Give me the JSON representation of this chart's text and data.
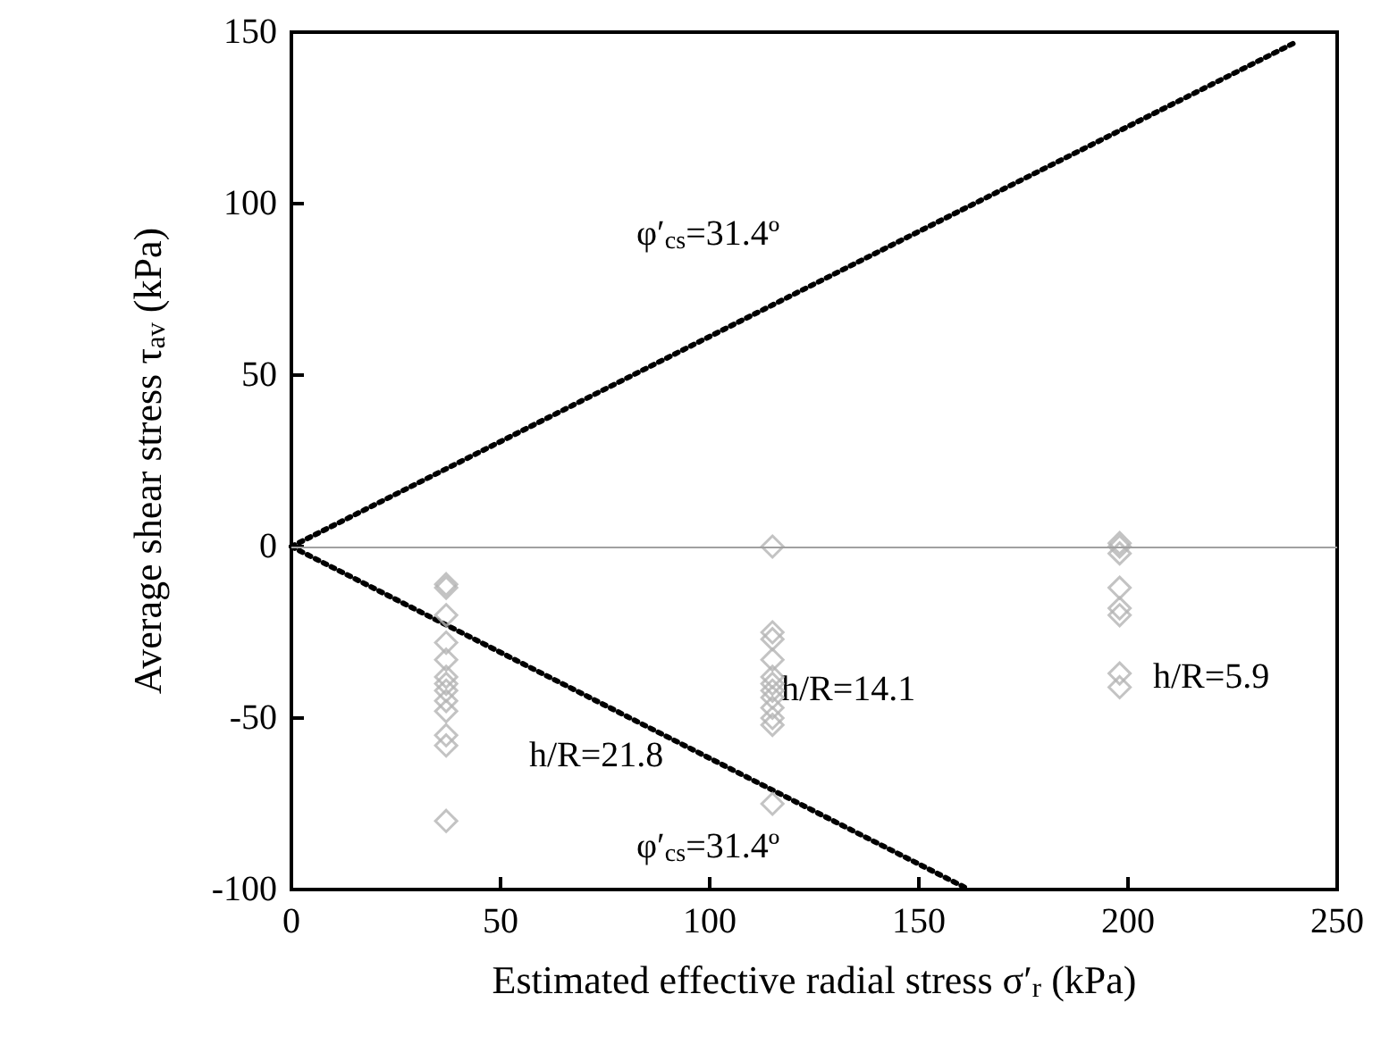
{
  "chart_data": {
    "type": "scatter",
    "xlabel": "Estimated effective radial stress σ′$_{r}$ (kPa)",
    "ylabel": "Average shear stress τ$_{av}$ (kPa)",
    "xlim": [
      0,
      250
    ],
    "xticks": [
      0,
      50,
      100,
      150,
      200,
      250
    ],
    "ylim": [
      -100,
      150
    ],
    "yticks": [
      -100,
      -50,
      0,
      50,
      100,
      150
    ],
    "grid": false,
    "marker": "diamond",
    "series": [
      {
        "color": "#b4b4b4",
        "x": [
          37,
          37,
          37,
          37,
          37,
          37,
          37,
          37,
          37,
          37,
          37,
          37,
          37,
          115,
          115,
          115,
          115,
          115,
          115,
          115,
          115,
          115,
          115,
          115,
          115,
          198,
          198,
          198,
          198,
          198,
          198,
          198,
          198
        ],
        "values": [
          -11,
          -12,
          -20,
          -28,
          -33,
          -38,
          -40,
          -42,
          -45,
          -48,
          -55,
          -58,
          -80,
          0,
          -25,
          -27,
          -33,
          -38,
          -40,
          -42,
          -44,
          -47,
          -50,
          -52,
          -75,
          1,
          0,
          -2,
          -12,
          -18,
          -20,
          -37,
          -41
        ]
      },
      {
        "type": "line",
        "color": "#000000",
        "line_style": "dotted",
        "marker": "none",
        "x": [
          0,
          240
        ],
        "values": [
          0,
          147
        ]
      },
      {
        "type": "line",
        "color": "#000000",
        "line_style": "dotted",
        "marker": "none",
        "x": [
          0,
          162
        ],
        "values": [
          0,
          -100
        ]
      }
    ],
    "ref_lines": [
      {
        "axis": "y",
        "value": 0,
        "color": "#a0a0a0"
      }
    ],
    "annotations": [
      "φ′$_{cs}$=31.4º",
      "φ′$_{cs}$=31.4º",
      "h/R=21.8",
      "h/R=14.1",
      "h/R=5.9"
    ]
  }
}
